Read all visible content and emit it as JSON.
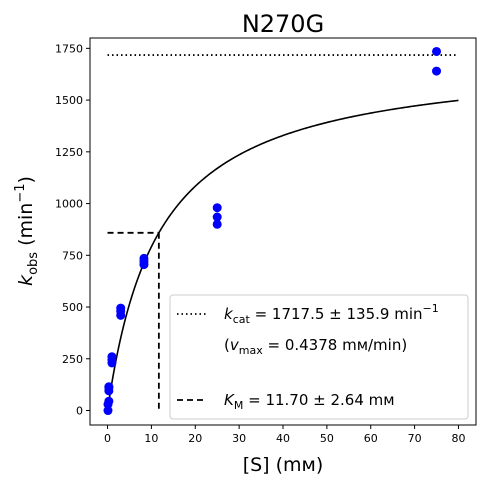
{
  "chart_data": {
    "type": "scatter",
    "title": "N270G",
    "xlabel": "[S] (mм)",
    "ylabel": {
      "main": "k",
      "sub": "obs",
      "unit": " (min",
      "sup": "−1",
      "close": ")"
    },
    "xlim": [
      -4,
      84
    ],
    "ylim": [
      -70,
      1800
    ],
    "xticks": [
      0,
      10,
      20,
      30,
      40,
      50,
      60,
      70,
      80
    ],
    "yticks": [
      0,
      250,
      500,
      750,
      1000,
      1250,
      1500,
      1750
    ],
    "grid": false,
    "points": {
      "color": "#0000ff",
      "x": [
        0.1,
        0.1,
        0.3,
        0.3,
        0.3,
        0.3,
        1,
        1,
        1,
        3,
        3,
        3,
        8.3,
        8.3,
        8.3,
        25,
        25,
        25,
        75,
        75
      ],
      "y": [
        0,
        30,
        45,
        95,
        110,
        115,
        230,
        245,
        260,
        460,
        480,
        495,
        705,
        720,
        735,
        900,
        935,
        980,
        1640,
        1735
      ]
    },
    "fit": {
      "type": "michaelis-menten",
      "kcat": 1717.5,
      "km": 11.7,
      "x_range": [
        0.1,
        80
      ],
      "color": "#000000"
    },
    "vmax_line": {
      "y": 1717.5,
      "x_range": [
        0,
        80
      ],
      "style": "dotted"
    },
    "km_lines": {
      "x": 11.7,
      "y": 858.75,
      "style": "dashed"
    },
    "legend": {
      "position": "lower-right",
      "entries": [
        {
          "style": "dotted",
          "main": "k",
          "sub": "cat",
          "text": " = 1717.5 ± 135.9 min",
          "sup": "−1"
        },
        {
          "style": "none",
          "pre": "(",
          "main": "v",
          "sub": "max",
          "text": " = 0.4378 mм/min)"
        },
        {
          "style": "dashed",
          "main": "K",
          "sub": "M",
          "text": " = 11.70 ± 2.64 mм"
        }
      ]
    }
  }
}
